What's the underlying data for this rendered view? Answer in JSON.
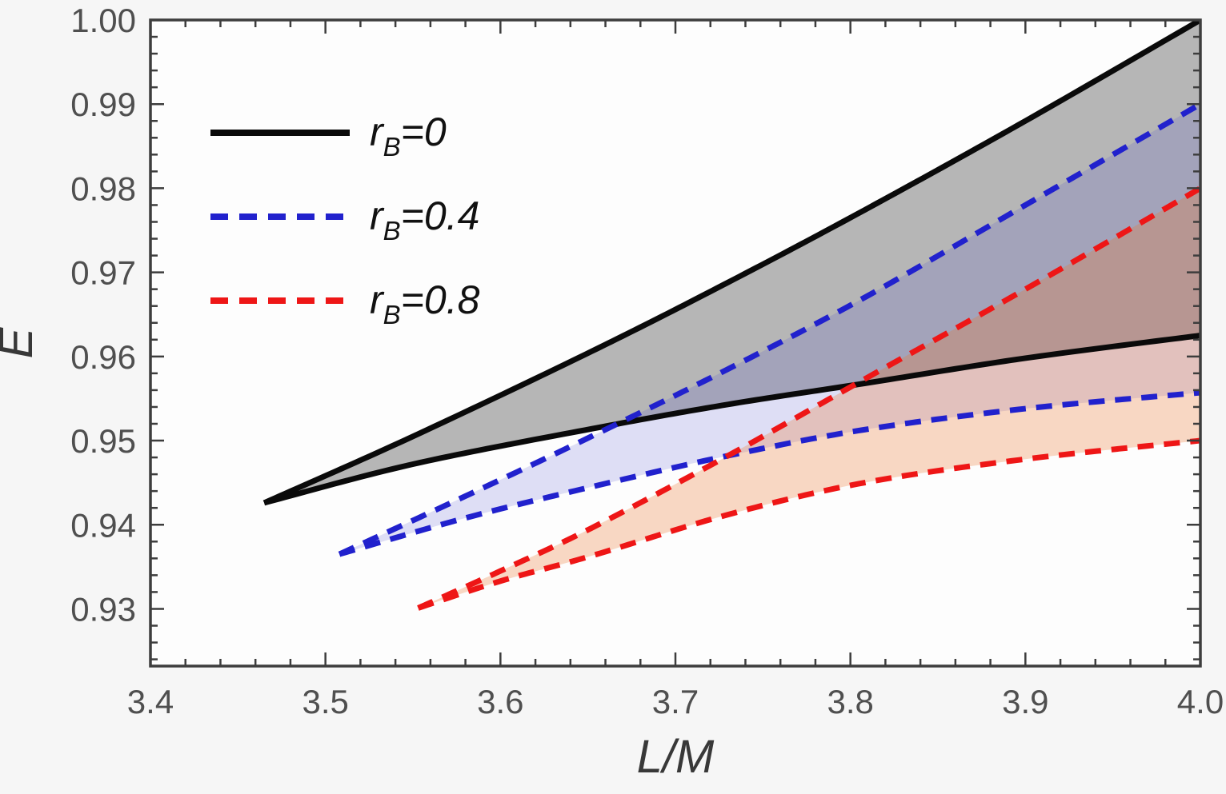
{
  "figure": {
    "background": "#f6f6f6",
    "plot_background": "#fdfdfd",
    "frame_color": "#3d3d3d",
    "tick_label_color": "#4f4f4f",
    "axis_label_color": "#383838"
  },
  "chart_data": {
    "type": "line",
    "title": "",
    "xlabel": "L/M",
    "ylabel": "E",
    "xlim": [
      3.4,
      4.0
    ],
    "ylim": [
      0.9232,
      1.0
    ],
    "grid": false,
    "legend_position": "upper-left-inside",
    "x_ticks": {
      "major": [
        3.4,
        3.5,
        3.6,
        3.7,
        3.8,
        3.9,
        4.0
      ],
      "labels": [
        "3.4",
        "3.5",
        "3.6",
        "3.7",
        "3.8",
        "3.9",
        "4.0"
      ],
      "minor_step": 0.02
    },
    "y_ticks": {
      "major": [
        0.93,
        0.94,
        0.95,
        0.96,
        0.97,
        0.98,
        0.99,
        1.0
      ],
      "labels": [
        "0.93",
        "0.94",
        "0.95",
        "0.96",
        "0.97",
        "0.98",
        "0.99",
        "1.00"
      ],
      "minor_step": 0.002
    },
    "series": [
      {
        "id": "rB0-upper",
        "name": "rB=0 upper branch",
        "color": "#0a0a0a",
        "dashed": false,
        "points": [
          [
            3.465,
            0.9426
          ],
          [
            3.55,
            0.9505
          ],
          [
            3.652,
            0.9606
          ],
          [
            3.73,
            0.9688
          ],
          [
            3.808,
            0.9774
          ],
          [
            3.9,
            0.988
          ],
          [
            4.0,
            1.0
          ]
        ]
      },
      {
        "id": "rB0-lower",
        "name": "rB=0 lower branch",
        "color": "#0a0a0a",
        "dashed": false,
        "points": [
          [
            3.465,
            0.9426
          ],
          [
            3.55,
            0.9472
          ],
          [
            3.652,
            0.9514
          ],
          [
            3.73,
            0.9543
          ],
          [
            3.808,
            0.9568
          ],
          [
            3.9,
            0.9598
          ],
          [
            4.0,
            0.9625
          ]
        ]
      },
      {
        "id": "rB04-upper",
        "name": "rB=0.4 upper branch",
        "color": "#2121cd",
        "dashed": true,
        "points": [
          [
            3.508,
            0.9365
          ],
          [
            3.58,
            0.9434
          ],
          [
            3.652,
            0.9505
          ],
          [
            3.73,
            0.9585
          ],
          [
            3.808,
            0.967
          ],
          [
            3.9,
            0.978
          ],
          [
            4.0,
            0.99
          ]
        ]
      },
      {
        "id": "rB04-lower",
        "name": "rB=0.4 lower branch",
        "color": "#2121cd",
        "dashed": true,
        "points": [
          [
            3.508,
            0.9365
          ],
          [
            3.58,
            0.9408
          ],
          [
            3.652,
            0.9445
          ],
          [
            3.73,
            0.9482
          ],
          [
            3.808,
            0.9513
          ],
          [
            3.9,
            0.9538
          ],
          [
            4.0,
            0.9557
          ]
        ]
      },
      {
        "id": "rB08-upper",
        "name": "rB=0.8 upper branch",
        "color": "#ee1616",
        "dashed": true,
        "points": [
          [
            3.553,
            0.9301
          ],
          [
            3.6,
            0.9345
          ],
          [
            3.652,
            0.9396
          ],
          [
            3.73,
            0.9482
          ],
          [
            3.808,
            0.9573
          ],
          [
            3.9,
            0.968
          ],
          [
            4.0,
            0.98
          ]
        ]
      },
      {
        "id": "rB08-lower",
        "name": "rB=0.8 lower branch",
        "color": "#ee1616",
        "dashed": true,
        "points": [
          [
            3.553,
            0.9301
          ],
          [
            3.6,
            0.9333
          ],
          [
            3.652,
            0.9363
          ],
          [
            3.73,
            0.9412
          ],
          [
            3.808,
            0.945
          ],
          [
            3.9,
            0.9478
          ],
          [
            4.0,
            0.95
          ]
        ]
      }
    ],
    "regions": [
      {
        "id": "rB0-region",
        "name": "rB=0 filled region",
        "fill": "rgba(0,0,0,0.28)",
        "upper": "rB0-upper",
        "lower": "rB0-lower"
      },
      {
        "id": "rB04-region",
        "name": "rB=0.4 filled region",
        "fill": "rgba(70,70,210,0.17)",
        "upper": "rB04-upper",
        "lower": "rB04-lower"
      },
      {
        "id": "rB08-region",
        "name": "rB=0.8 filled region",
        "fill": "rgba(235,115,40,0.27)",
        "upper": "rB08-upper",
        "lower": "rB08-lower"
      }
    ],
    "legend": {
      "items": [
        {
          "id": "rB0",
          "symbol": "solid",
          "color": "#0a0a0a",
          "label": {
            "base": "r",
            "sub": "B",
            "rest": "=0"
          },
          "text": "rB=0"
        },
        {
          "id": "rB04",
          "symbol": "dashed",
          "color": "#2121cd",
          "label": {
            "base": "r",
            "sub": "B",
            "rest": "=0.4"
          },
          "text": "rB=0.4"
        },
        {
          "id": "rB08",
          "symbol": "dashed",
          "color": "#ee1616",
          "label": {
            "base": "r",
            "sub": "B",
            "rest": "=0.8"
          },
          "text": "rB=0.8"
        }
      ]
    }
  }
}
